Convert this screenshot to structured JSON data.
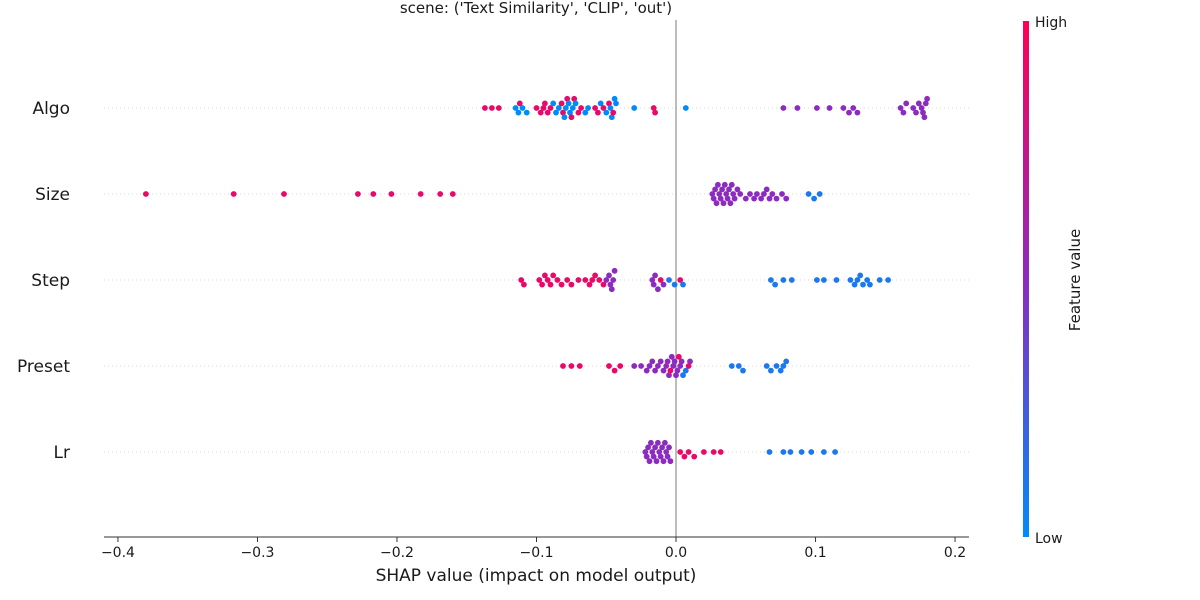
{
  "chart_data": {
    "type": "scatter",
    "title": "scene: ('Text Similarity', 'CLIP', 'out')",
    "xlabel": "SHAP value (impact on model output)",
    "xlim": [
      -0.41,
      0.21
    ],
    "x_ticks": [
      {
        "value": -0.4,
        "label": "−0.4"
      },
      {
        "value": -0.3,
        "label": "−0.3"
      },
      {
        "value": -0.2,
        "label": "−0.2"
      },
      {
        "value": -0.1,
        "label": "−0.1"
      },
      {
        "value": 0.0,
        "label": "0.0"
      },
      {
        "value": 0.1,
        "label": "0.1"
      },
      {
        "value": 0.2,
        "label": "0.2"
      }
    ],
    "zero_line": 0.0,
    "features": [
      "Algo",
      "Size",
      "Step",
      "Preset",
      "Lr"
    ],
    "colorbar": {
      "label": "Feature value",
      "high_label": "High",
      "low_label": "Low",
      "high_color": "#ff0052",
      "mid_color": "#8b2bbf",
      "low_color": "#008bfb"
    },
    "points": {
      "Algo": [
        [
          -0.137,
          0.9
        ],
        [
          -0.132,
          0.9
        ],
        [
          -0.127,
          0.9
        ],
        [
          -0.115,
          0.0
        ],
        [
          -0.113,
          0.0
        ],
        [
          -0.112,
          0.9
        ],
        [
          -0.11,
          0.0
        ],
        [
          -0.107,
          0.0
        ],
        [
          -0.1,
          0.9
        ],
        [
          -0.097,
          0.9
        ],
        [
          -0.095,
          0.9
        ],
        [
          -0.094,
          0.9
        ],
        [
          -0.092,
          0.9
        ],
        [
          -0.09,
          0.9
        ],
        [
          -0.088,
          0.0
        ],
        [
          -0.086,
          0.0
        ],
        [
          -0.084,
          0.0
        ],
        [
          -0.082,
          0.9
        ],
        [
          -0.081,
          0.9
        ],
        [
          -0.08,
          0.0
        ],
        [
          -0.079,
          0.0
        ],
        [
          -0.078,
          0.9
        ],
        [
          -0.077,
          0.0
        ],
        [
          -0.076,
          0.0
        ],
        [
          -0.075,
          0.9
        ],
        [
          -0.074,
          0.0
        ],
        [
          -0.073,
          0.9
        ],
        [
          -0.072,
          0.0
        ],
        [
          -0.07,
          0.9
        ],
        [
          -0.068,
          0.9
        ],
        [
          -0.065,
          0.0
        ],
        [
          -0.063,
          0.0
        ],
        [
          -0.058,
          0.9
        ],
        [
          -0.056,
          0.9
        ],
        [
          -0.054,
          0.0
        ],
        [
          -0.052,
          0.9
        ],
        [
          -0.05,
          0.0
        ],
        [
          -0.048,
          0.9
        ],
        [
          -0.047,
          0.0
        ],
        [
          -0.046,
          0.0
        ],
        [
          -0.045,
          0.9
        ],
        [
          -0.044,
          0.0
        ],
        [
          -0.043,
          0.0
        ],
        [
          -0.03,
          0.0
        ],
        [
          -0.016,
          0.9
        ],
        [
          -0.015,
          0.9
        ],
        [
          0.007,
          0.0
        ],
        [
          0.077,
          0.5
        ],
        [
          0.087,
          0.5
        ],
        [
          0.101,
          0.5
        ],
        [
          0.11,
          0.5
        ],
        [
          0.12,
          0.5
        ],
        [
          0.124,
          0.5
        ],
        [
          0.127,
          0.5
        ],
        [
          0.13,
          0.5
        ],
        [
          0.161,
          0.5
        ],
        [
          0.163,
          0.5
        ],
        [
          0.165,
          0.5
        ],
        [
          0.17,
          0.5
        ],
        [
          0.172,
          0.5
        ],
        [
          0.174,
          0.5
        ],
        [
          0.176,
          0.5
        ],
        [
          0.177,
          0.5
        ],
        [
          0.178,
          0.5
        ],
        [
          0.179,
          0.5
        ],
        [
          0.18,
          0.5
        ]
      ],
      "Size": [
        [
          -0.38,
          0.9
        ],
        [
          -0.317,
          0.9
        ],
        [
          -0.281,
          0.9
        ],
        [
          -0.228,
          0.9
        ],
        [
          -0.217,
          0.9
        ],
        [
          -0.204,
          0.9
        ],
        [
          -0.183,
          0.9
        ],
        [
          -0.169,
          0.9
        ],
        [
          -0.16,
          0.9
        ],
        [
          0.026,
          0.5
        ],
        [
          0.027,
          0.5
        ],
        [
          0.028,
          0.5
        ],
        [
          0.029,
          0.5
        ],
        [
          0.03,
          0.5
        ],
        [
          0.031,
          0.5
        ],
        [
          0.032,
          0.5
        ],
        [
          0.033,
          0.5
        ],
        [
          0.034,
          0.5
        ],
        [
          0.035,
          0.5
        ],
        [
          0.036,
          0.5
        ],
        [
          0.037,
          0.5
        ],
        [
          0.038,
          0.5
        ],
        [
          0.039,
          0.5
        ],
        [
          0.04,
          0.5
        ],
        [
          0.041,
          0.5
        ],
        [
          0.042,
          0.5
        ],
        [
          0.044,
          0.5
        ],
        [
          0.046,
          0.5
        ],
        [
          0.05,
          0.5
        ],
        [
          0.053,
          0.5
        ],
        [
          0.056,
          0.5
        ],
        [
          0.058,
          0.5
        ],
        [
          0.061,
          0.5
        ],
        [
          0.063,
          0.5
        ],
        [
          0.065,
          0.5
        ],
        [
          0.067,
          0.5
        ],
        [
          0.069,
          0.5
        ],
        [
          0.072,
          0.5
        ],
        [
          0.076,
          0.5
        ],
        [
          0.079,
          0.5
        ],
        [
          0.095,
          0.1
        ],
        [
          0.099,
          0.1
        ],
        [
          0.103,
          0.1
        ]
      ],
      "Step": [
        [
          -0.111,
          0.9
        ],
        [
          -0.109,
          0.9
        ],
        [
          -0.098,
          0.9
        ],
        [
          -0.096,
          0.9
        ],
        [
          -0.094,
          0.9
        ],
        [
          -0.092,
          0.9
        ],
        [
          -0.09,
          0.9
        ],
        [
          -0.088,
          0.9
        ],
        [
          -0.085,
          0.9
        ],
        [
          -0.082,
          0.9
        ],
        [
          -0.078,
          0.9
        ],
        [
          -0.075,
          0.9
        ],
        [
          -0.07,
          0.9
        ],
        [
          -0.065,
          0.9
        ],
        [
          -0.062,
          0.9
        ],
        [
          -0.06,
          0.9
        ],
        [
          -0.058,
          0.9
        ],
        [
          -0.055,
          0.9
        ],
        [
          -0.052,
          0.9
        ],
        [
          -0.05,
          0.5
        ],
        [
          -0.048,
          0.5
        ],
        [
          -0.047,
          0.5
        ],
        [
          -0.046,
          0.5
        ],
        [
          -0.045,
          0.5
        ],
        [
          -0.044,
          0.5
        ],
        [
          -0.017,
          0.5
        ],
        [
          -0.016,
          0.5
        ],
        [
          -0.015,
          0.5
        ],
        [
          -0.013,
          0.5
        ],
        [
          -0.011,
          0.9
        ],
        [
          -0.009,
          0.5
        ],
        [
          -0.005,
          0.1
        ],
        [
          -0.001,
          0.1
        ],
        [
          0.003,
          0.9
        ],
        [
          0.005,
          0.1
        ],
        [
          0.068,
          0.1
        ],
        [
          0.071,
          0.1
        ],
        [
          0.077,
          0.1
        ],
        [
          0.083,
          0.1
        ],
        [
          0.101,
          0.1
        ],
        [
          0.106,
          0.1
        ],
        [
          0.115,
          0.1
        ],
        [
          0.125,
          0.1
        ],
        [
          0.128,
          0.1
        ],
        [
          0.13,
          0.1
        ],
        [
          0.132,
          0.1
        ],
        [
          0.134,
          0.1
        ],
        [
          0.137,
          0.1
        ],
        [
          0.139,
          0.1
        ],
        [
          0.146,
          0.1
        ],
        [
          0.152,
          0.1
        ]
      ],
      "Preset": [
        [
          -0.081,
          0.9
        ],
        [
          -0.075,
          0.9
        ],
        [
          -0.069,
          0.9
        ],
        [
          -0.048,
          0.9
        ],
        [
          -0.044,
          0.9
        ],
        [
          -0.04,
          0.9
        ],
        [
          -0.03,
          0.5
        ],
        [
          -0.025,
          0.5
        ],
        [
          -0.021,
          0.5
        ],
        [
          -0.019,
          0.5
        ],
        [
          -0.017,
          0.5
        ],
        [
          -0.015,
          0.5
        ],
        [
          -0.013,
          0.5
        ],
        [
          -0.011,
          0.5
        ],
        [
          -0.009,
          0.5
        ],
        [
          -0.007,
          0.5
        ],
        [
          -0.006,
          0.5
        ],
        [
          -0.005,
          0.5
        ],
        [
          -0.004,
          0.9
        ],
        [
          -0.003,
          0.5
        ],
        [
          -0.002,
          0.5
        ],
        [
          -0.001,
          0.5
        ],
        [
          0.0,
          0.5
        ],
        [
          0.001,
          0.5
        ],
        [
          0.002,
          0.9
        ],
        [
          0.003,
          0.5
        ],
        [
          0.004,
          0.5
        ],
        [
          0.005,
          0.1
        ],
        [
          0.007,
          0.1
        ],
        [
          0.009,
          0.9
        ],
        [
          0.01,
          0.5
        ],
        [
          0.04,
          0.1
        ],
        [
          0.045,
          0.1
        ],
        [
          0.048,
          0.1
        ],
        [
          0.065,
          0.1
        ],
        [
          0.068,
          0.1
        ],
        [
          0.072,
          0.1
        ],
        [
          0.075,
          0.1
        ],
        [
          0.077,
          0.1
        ],
        [
          0.079,
          0.1
        ]
      ],
      "Lr": [
        [
          -0.022,
          0.5
        ],
        [
          -0.021,
          0.5
        ],
        [
          -0.02,
          0.5
        ],
        [
          -0.019,
          0.5
        ],
        [
          -0.018,
          0.5
        ],
        [
          -0.017,
          0.5
        ],
        [
          -0.016,
          0.5
        ],
        [
          -0.015,
          0.5
        ],
        [
          -0.014,
          0.5
        ],
        [
          -0.013,
          0.5
        ],
        [
          -0.012,
          0.5
        ],
        [
          -0.011,
          0.5
        ],
        [
          -0.01,
          0.5
        ],
        [
          -0.009,
          0.5
        ],
        [
          -0.008,
          0.5
        ],
        [
          -0.007,
          0.5
        ],
        [
          -0.006,
          0.5
        ],
        [
          -0.005,
          0.5
        ],
        [
          -0.004,
          0.5
        ],
        [
          0.003,
          0.9
        ],
        [
          0.006,
          0.9
        ],
        [
          0.009,
          0.9
        ],
        [
          0.013,
          0.9
        ],
        [
          0.02,
          0.9
        ],
        [
          0.027,
          0.9
        ],
        [
          0.032,
          0.9
        ],
        [
          0.067,
          0.1
        ],
        [
          0.077,
          0.1
        ],
        [
          0.082,
          0.1
        ],
        [
          0.09,
          0.1
        ],
        [
          0.097,
          0.1
        ],
        [
          0.106,
          0.1
        ],
        [
          0.114,
          0.1
        ]
      ]
    }
  }
}
